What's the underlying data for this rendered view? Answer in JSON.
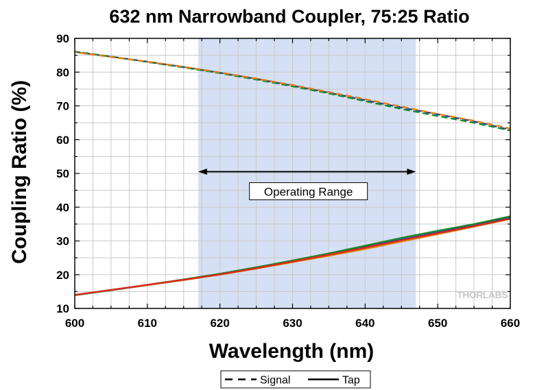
{
  "chart_data": {
    "type": "line",
    "title": "632 nm Narrowband Coupler, 75:25 Ratio",
    "xlabel": "Wavelength (nm)",
    "ylabel": "Coupling Ratio (%)",
    "xlim": [
      600,
      660
    ],
    "ylim": [
      10,
      90
    ],
    "x_ticks": [
      600,
      610,
      620,
      630,
      640,
      650,
      660
    ],
    "y_ticks": [
      10,
      20,
      30,
      40,
      50,
      60,
      70,
      80,
      90
    ],
    "grid": true,
    "shaded_region": {
      "x_start": 617,
      "x_end": 647,
      "color": "#d6e0f4"
    },
    "annotation": {
      "text": "Operating Range",
      "x_start": 617,
      "x_end": 647,
      "y": 50.5
    },
    "legend_position": "bottom",
    "legend": [
      {
        "label": "Signal",
        "style": "dashed"
      },
      {
        "label": "Tap",
        "style": "solid"
      }
    ],
    "watermark": "THORLABS",
    "x": [
      600,
      605,
      610,
      615,
      620,
      625,
      630,
      635,
      640,
      645,
      650,
      655,
      660
    ],
    "series": [
      {
        "group": "Signal",
        "color": "#1f3fa6",
        "style": "dashed",
        "values": [
          86.0,
          84.6,
          83.1,
          81.5,
          79.8,
          78.0,
          76.0,
          73.9,
          71.7,
          69.5,
          67.5,
          65.4,
          62.9
        ]
      },
      {
        "group": "Signal",
        "color": "#1a8a2a",
        "style": "dashed",
        "values": [
          86.1,
          84.6,
          83.0,
          81.4,
          79.7,
          77.8,
          75.8,
          73.7,
          71.4,
          69.1,
          67.0,
          65.0,
          62.7
        ]
      },
      {
        "group": "Signal",
        "color": "#e87d10",
        "style": "dashed",
        "values": [
          85.9,
          84.5,
          83.1,
          81.6,
          79.9,
          78.1,
          76.2,
          74.1,
          72.0,
          69.8,
          67.6,
          65.6,
          63.3
        ]
      },
      {
        "group": "Tap",
        "color": "#1f3fa6",
        "style": "solid",
        "values": [
          14.0,
          15.4,
          16.9,
          18.5,
          20.2,
          22.0,
          24.0,
          26.1,
          28.2,
          30.4,
          32.5,
          34.7,
          37.0
        ]
      },
      {
        "group": "Tap",
        "color": "#1a8a2a",
        "style": "solid",
        "values": [
          13.9,
          15.4,
          17.0,
          18.6,
          20.3,
          22.2,
          24.2,
          26.3,
          28.6,
          30.9,
          33.0,
          35.0,
          37.3
        ]
      },
      {
        "group": "Tap",
        "color": "#e87d10",
        "style": "solid",
        "values": [
          14.0,
          15.5,
          16.9,
          18.4,
          20.0,
          21.8,
          23.7,
          25.6,
          27.6,
          29.8,
          32.0,
          34.2,
          36.5
        ]
      },
      {
        "group": "Tap",
        "color": "#d42a1e",
        "style": "solid",
        "values": [
          14.0,
          15.5,
          17.0,
          18.5,
          20.1,
          21.9,
          23.9,
          25.9,
          28.0,
          30.2,
          32.3,
          34.4,
          36.6
        ]
      }
    ]
  }
}
